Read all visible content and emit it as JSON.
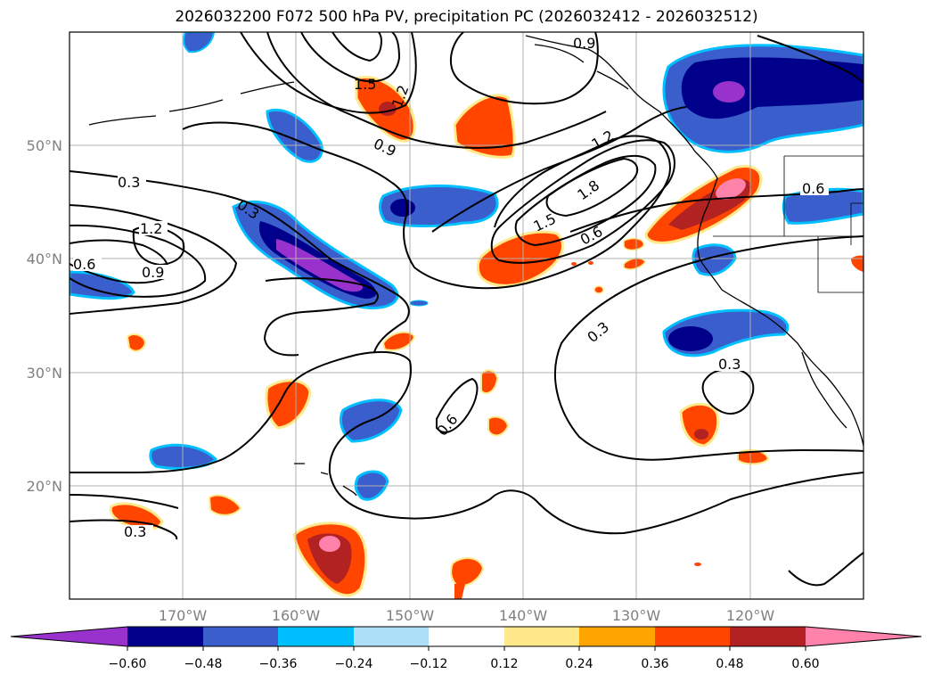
{
  "title": "2026032200 F072 500 hPa PV, precipitation PC (2026032412 - 2026032512)",
  "map": {
    "lat_ticks": [
      "50°N",
      "40°N",
      "30°N",
      "20°N"
    ],
    "lon_ticks": [
      "170°W",
      "160°W",
      "150°W",
      "140°W",
      "130°W",
      "120°W"
    ],
    "grid": true
  },
  "contour_labels": [
    "0.3",
    "1.2",
    "0.9",
    "0.6",
    "0.3",
    "1.5",
    "1.2",
    "0.9",
    "1.2",
    "1.8",
    "1.5",
    "0.6",
    "0.6",
    "0.3",
    "0.3",
    "0.6",
    "0.3",
    "0.9"
  ],
  "colorbar": {
    "tick_labels": [
      "−0.60",
      "−0.48",
      "−0.36",
      "−0.24",
      "−0.12",
      "0.12",
      "0.24",
      "0.36",
      "0.48",
      "0.60"
    ],
    "colors": {
      "min_extend": "#9932CC",
      "c1": "#00008B",
      "c2": "#3A5FCD",
      "c3": "#00BFFF",
      "c4": "#ADDFF8",
      "c5": "#FFFFFF",
      "c6": "#FFE98A",
      "c7": "#FFA500",
      "c8": "#FF4500",
      "c9": "#B22222",
      "max_extend": "#FF82AB"
    }
  }
}
